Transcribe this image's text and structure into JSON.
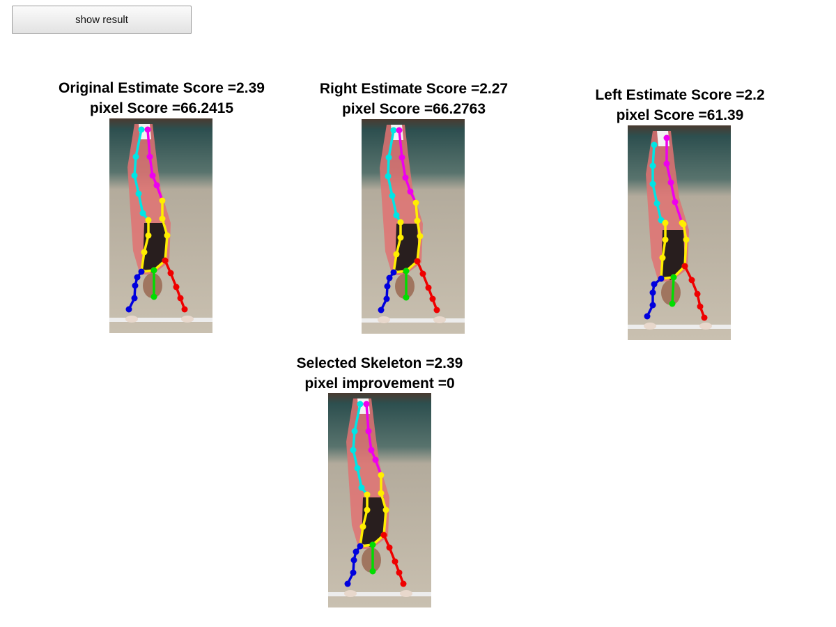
{
  "toolbar": {
    "show_result_label": "show result"
  },
  "panels": [
    {
      "title": "Original Estimate Score =2.39",
      "subtitle": "pixel Score =66.2415"
    },
    {
      "title": "Right Estimate Score =2.27",
      "subtitle": "pixel Score =66.2763"
    },
    {
      "title": "Left Estimate Score =2.2",
      "subtitle": "pixel Score =61.39"
    },
    {
      "title": "Selected Skeleton =2.39",
      "subtitle": "pixel improvement =0"
    }
  ],
  "limb_colors": {
    "left_leg": "#00e5e5",
    "right_leg": "#ee00ee",
    "torso": "#ffee00",
    "left_arm": "#0000dd",
    "right_arm": "#ee0000",
    "head": "#00dd00"
  }
}
